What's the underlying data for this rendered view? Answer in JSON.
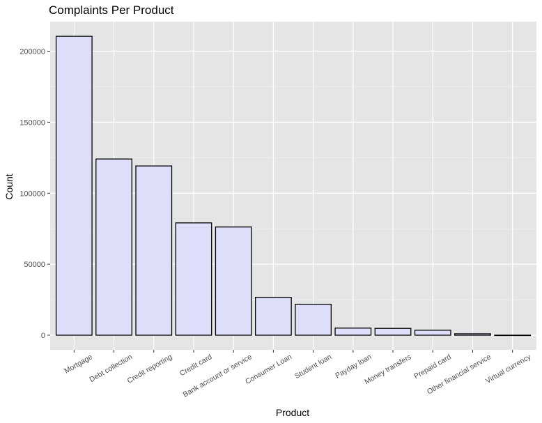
{
  "chart_data": {
    "type": "bar",
    "title": "Complaints Per Product",
    "xlabel": "Product",
    "ylabel": "Count",
    "categories": [
      "Mortgage",
      "Debt collection",
      "Credit reporting",
      "Credit card",
      "Bank account or service",
      "Consumer Loan",
      "Student loan",
      "Payday loan",
      "Money transfers",
      "Prepaid card",
      "Other financial service",
      "Virtual currency"
    ],
    "values": [
      210500,
      124100,
      119200,
      79100,
      76200,
      26700,
      21800,
      5000,
      4800,
      3500,
      1000,
      16
    ],
    "ylim": [
      -10000,
      220000
    ],
    "yticks": [
      0,
      50000,
      100000,
      150000,
      200000
    ],
    "ytick_labels": [
      "0",
      "50000",
      "100000",
      "150000",
      "200000"
    ],
    "grid": true,
    "colors": {
      "bar_fill": "#dedefa",
      "bar_stroke": "#000000",
      "panel_bg": "#e5e5e5",
      "grid_major": "#ffffff",
      "grid_minor": "#f2f2f2"
    }
  }
}
